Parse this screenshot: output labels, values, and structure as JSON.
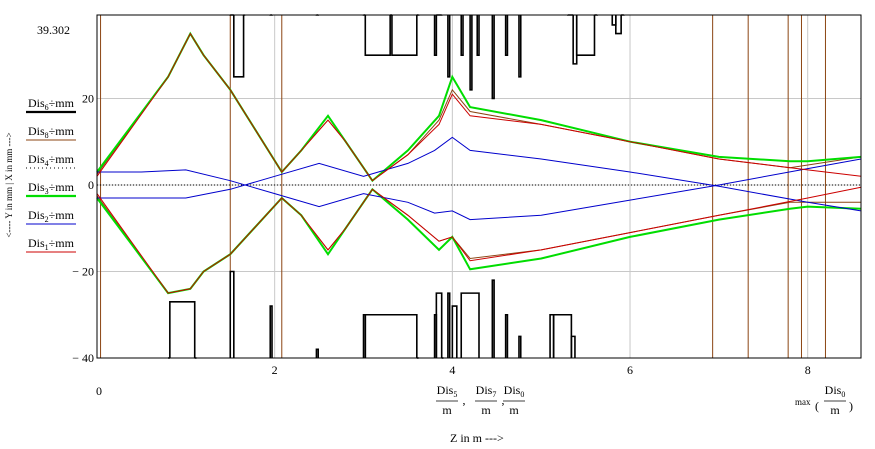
{
  "chart_data": {
    "type": "line",
    "title": "",
    "xlim": [
      0,
      8.6
    ],
    "ylim": [
      -40,
      39.302
    ],
    "grid": true,
    "x_ticks": [
      0,
      2,
      4,
      6,
      8
    ],
    "y_ticks": [
      -40,
      -20,
      0,
      20
    ],
    "y_top_label": "39.302",
    "x_origin_label": "0",
    "y_axis_label": "<----  Y in mm  |  X in mm  --->",
    "x_axis_label": "Z in m  --->",
    "x_range_label": {
      "names": [
        "Dis",
        "Dis",
        "Dis"
      ],
      "subs": [
        "5",
        "7",
        "0"
      ],
      "den": "m",
      "max_prefix": "max",
      "max_name": "Dis",
      "max_sub": "0",
      "max_den": "m"
    },
    "legend": [
      {
        "name": "Dis",
        "sub": "6",
        "suffix": "÷mm",
        "color": "#000000",
        "style": "solid-thick"
      },
      {
        "name": "Dis",
        "sub": "8",
        "suffix": "÷mm",
        "color": "#8b4513",
        "style": "solid"
      },
      {
        "name": "Dis",
        "sub": "4",
        "suffix": "÷mm",
        "color": "#000000",
        "style": "dotted"
      },
      {
        "name": "Dis",
        "sub": "3",
        "suffix": "÷mm",
        "color": "#00dd00",
        "style": "solid-thick"
      },
      {
        "name": "Dis",
        "sub": "2",
        "suffix": "÷mm",
        "color": "#0000cc",
        "style": "solid"
      },
      {
        "name": "Dis",
        "sub": "1",
        "suffix": "÷mm",
        "color": "#cc0000",
        "style": "solid"
      }
    ],
    "vertical_markers": {
      "color": "#8b4513",
      "x": [
        0.04,
        1.5,
        2.08,
        6.93,
        7.33,
        7.78,
        7.93,
        8.2
      ]
    },
    "apertures_top": [
      [
        1.5,
        1.54,
        39.3
      ],
      [
        1.54,
        1.65,
        25
      ],
      [
        1.65,
        1.66,
        39.3
      ],
      [
        1.95,
        1.97,
        39.3
      ],
      [
        2.47,
        2.49,
        39.3
      ],
      [
        3.0,
        3.02,
        39.3
      ],
      [
        3.02,
        3.3,
        30
      ],
      [
        3.3,
        3.32,
        39.3
      ],
      [
        3.32,
        3.6,
        30
      ],
      [
        3.6,
        3.62,
        39.3
      ],
      [
        3.8,
        3.82,
        30
      ],
      [
        3.82,
        3.88,
        39.3
      ],
      [
        3.95,
        3.97,
        25
      ],
      [
        4.1,
        4.12,
        30
      ],
      [
        4.2,
        4.22,
        22
      ],
      [
        4.28,
        4.3,
        30
      ],
      [
        4.45,
        4.47,
        20
      ],
      [
        4.6,
        4.62,
        30
      ],
      [
        4.75,
        4.77,
        25
      ],
      [
        5.3,
        5.36,
        39.3
      ],
      [
        5.36,
        5.4,
        28
      ],
      [
        5.4,
        5.6,
        30
      ],
      [
        5.6,
        5.63,
        39.3
      ],
      [
        5.8,
        5.84,
        37
      ],
      [
        5.84,
        5.9,
        35
      ],
      [
        5.9,
        5.93,
        39.3
      ]
    ],
    "apertures_bottom": [
      [
        0.8,
        0.82,
        -40
      ],
      [
        0.82,
        1.1,
        -27
      ],
      [
        1.1,
        1.12,
        -40
      ],
      [
        1.5,
        1.54,
        -20
      ],
      [
        1.95,
        1.97,
        -28
      ],
      [
        2.47,
        2.49,
        -38
      ],
      [
        3.0,
        3.02,
        -30
      ],
      [
        3.02,
        3.6,
        -30
      ],
      [
        3.6,
        3.62,
        -40
      ],
      [
        3.8,
        3.82,
        -30
      ],
      [
        3.82,
        3.88,
        -25
      ],
      [
        3.88,
        3.9,
        -40
      ],
      [
        3.95,
        3.97,
        -25
      ],
      [
        4.0,
        4.05,
        -28
      ],
      [
        4.1,
        4.3,
        -25
      ],
      [
        4.45,
        4.47,
        -22
      ],
      [
        4.6,
        4.62,
        -30
      ],
      [
        4.75,
        4.77,
        -35
      ],
      [
        5.1,
        5.14,
        -30
      ],
      [
        5.14,
        5.34,
        -30
      ],
      [
        5.34,
        5.38,
        -35
      ]
    ],
    "series": [
      {
        "name": "Dis6",
        "color": "#000000",
        "width": 1.6,
        "step": true,
        "x": [
          0,
          0.8,
          0.82,
          1.1,
          1.12,
          1.5,
          1.52,
          1.55,
          1.62,
          1.64,
          1.97,
          2.0,
          2.46,
          2.48,
          2.55,
          3.0,
          3.02,
          3.28,
          3.32,
          3.6,
          3.62,
          3.82,
          3.84,
          4.2,
          4.22,
          4.25,
          4.3,
          4.62,
          4.64,
          4.75,
          5.1,
          5.13,
          5.34,
          5.36,
          5.6,
          5.62,
          5.92,
          8.6
        ],
        "y": [
          -40,
          -40,
          -27,
          -27,
          -40,
          -40,
          -15,
          -40,
          -40,
          -20,
          -20,
          -40,
          -40,
          -30,
          -40,
          -40,
          -30,
          -30,
          -30,
          -30,
          -40,
          -40,
          -25,
          -25,
          -40,
          -30,
          -40,
          -40,
          -22,
          -40,
          -40,
          -30,
          -30,
          -40,
          -40,
          -40,
          -40,
          -40
        ]
      },
      {
        "name": "Dis8",
        "color": "#8b4513",
        "width": 1,
        "x": [
          0,
          0.8,
          1.05,
          1.2,
          1.5,
          2.08,
          2.3,
          2.6,
          2.8,
          3.1,
          3.5,
          3.85,
          4.0,
          4.2,
          5.0,
          6.0,
          7.0,
          7.8,
          8.6
        ],
        "y": [
          -2.5,
          -25,
          -24,
          -20,
          -16,
          -3,
          -7,
          -15,
          -10,
          -1,
          -7,
          -13,
          -12,
          -17,
          -15,
          -11,
          -7,
          -4,
          -4
        ]
      },
      {
        "name": "Dis8b",
        "color": "#8b4513",
        "width": 1,
        "x": [
          0,
          0.8,
          1.05,
          1.2,
          1.5,
          2.08,
          2.3,
          2.6,
          2.8,
          3.1,
          3.5,
          3.85,
          4.0,
          4.2,
          5.0,
          6.0,
          7.0,
          7.8,
          8.6
        ],
        "y": [
          2.5,
          25,
          35,
          30,
          22,
          3,
          8,
          15,
          10,
          1,
          7,
          15,
          22,
          17,
          14,
          10,
          6,
          4,
          6.5
        ]
      },
      {
        "name": "Dis4",
        "color": "#000000",
        "width": 1,
        "dash": "1,2",
        "x": [
          0,
          8.6
        ],
        "y": [
          0,
          0
        ]
      },
      {
        "name": "Dis3",
        "color": "#00dd00",
        "width": 2,
        "x": [
          0,
          0.8,
          1.05,
          1.2,
          1.5,
          2.08,
          2.3,
          2.6,
          2.8,
          3.1,
          3.5,
          3.85,
          4.0,
          4.2,
          5.0,
          6.0,
          7.0,
          7.8,
          8.0,
          8.6
        ],
        "y": [
          -3,
          -25,
          -24,
          -20,
          -16,
          -3,
          -7,
          -16,
          -10,
          -1,
          -8,
          -15,
          -12,
          -19.5,
          -17,
          -12,
          -8,
          -5.5,
          -5,
          -5.5
        ]
      },
      {
        "name": "Dis3b",
        "color": "#00dd00",
        "width": 2,
        "x": [
          0,
          0.8,
          1.05,
          1.2,
          1.5,
          2.08,
          2.3,
          2.6,
          2.8,
          3.1,
          3.5,
          3.85,
          4.0,
          4.2,
          5.0,
          6.0,
          7.0,
          7.8,
          8.0,
          8.6
        ],
        "y": [
          3,
          25,
          35,
          30,
          22,
          3,
          8,
          16,
          10,
          1,
          8,
          16,
          25,
          18,
          15,
          10,
          6.5,
          5.5,
          5.5,
          6.5
        ]
      },
      {
        "name": "Dis2",
        "color": "#0000cc",
        "width": 1,
        "x": [
          0,
          0.5,
          1.0,
          1.5,
          2.0,
          2.5,
          3.0,
          3.5,
          3.8,
          4.0,
          4.2,
          5.0,
          6.0,
          7.0,
          8.0,
          8.6
        ],
        "y": [
          3,
          3,
          3.5,
          1,
          -2,
          -5,
          -2,
          -4,
          -6.5,
          -6,
          -8,
          -7,
          -3.5,
          0,
          3.8,
          6
        ]
      },
      {
        "name": "Dis2b",
        "color": "#0000cc",
        "width": 1,
        "x": [
          0,
          0.5,
          1.0,
          1.5,
          2.0,
          2.5,
          3.0,
          3.5,
          3.8,
          4.0,
          4.2,
          5.0,
          6.0,
          7.0,
          8.0,
          8.6
        ],
        "y": [
          -3,
          -3,
          -3,
          -1,
          2,
          5,
          2,
          5,
          8,
          11,
          8,
          6,
          3,
          -0.3,
          -4,
          -6
        ]
      },
      {
        "name": "Dis1",
        "color": "#cc0000",
        "width": 1,
        "x": [
          0,
          0.8,
          1.05,
          1.2,
          1.5,
          2.08,
          2.3,
          2.6,
          2.8,
          3.1,
          3.5,
          3.85,
          4.0,
          4.2,
          5.0,
          6.0,
          7.0,
          8.0,
          8.6
        ],
        "y": [
          -2,
          -25,
          -24,
          -20,
          -16,
          -3,
          -7,
          -15,
          -10,
          -1,
          -7,
          -13,
          -12,
          -17.5,
          -15,
          -11,
          -7,
          -3,
          -0.5
        ]
      },
      {
        "name": "Dis1b",
        "color": "#cc0000",
        "width": 1,
        "x": [
          0,
          0.8,
          1.05,
          1.2,
          1.5,
          2.08,
          2.3,
          2.6,
          2.8,
          3.1,
          3.5,
          3.85,
          4.0,
          4.2,
          5.0,
          6.0,
          7.0,
          8.0,
          8.6
        ],
        "y": [
          2,
          25,
          35,
          30,
          22,
          3,
          8,
          15,
          10,
          1,
          7,
          14,
          21,
          16,
          14,
          10,
          6,
          3.5,
          2
        ]
      }
    ]
  }
}
